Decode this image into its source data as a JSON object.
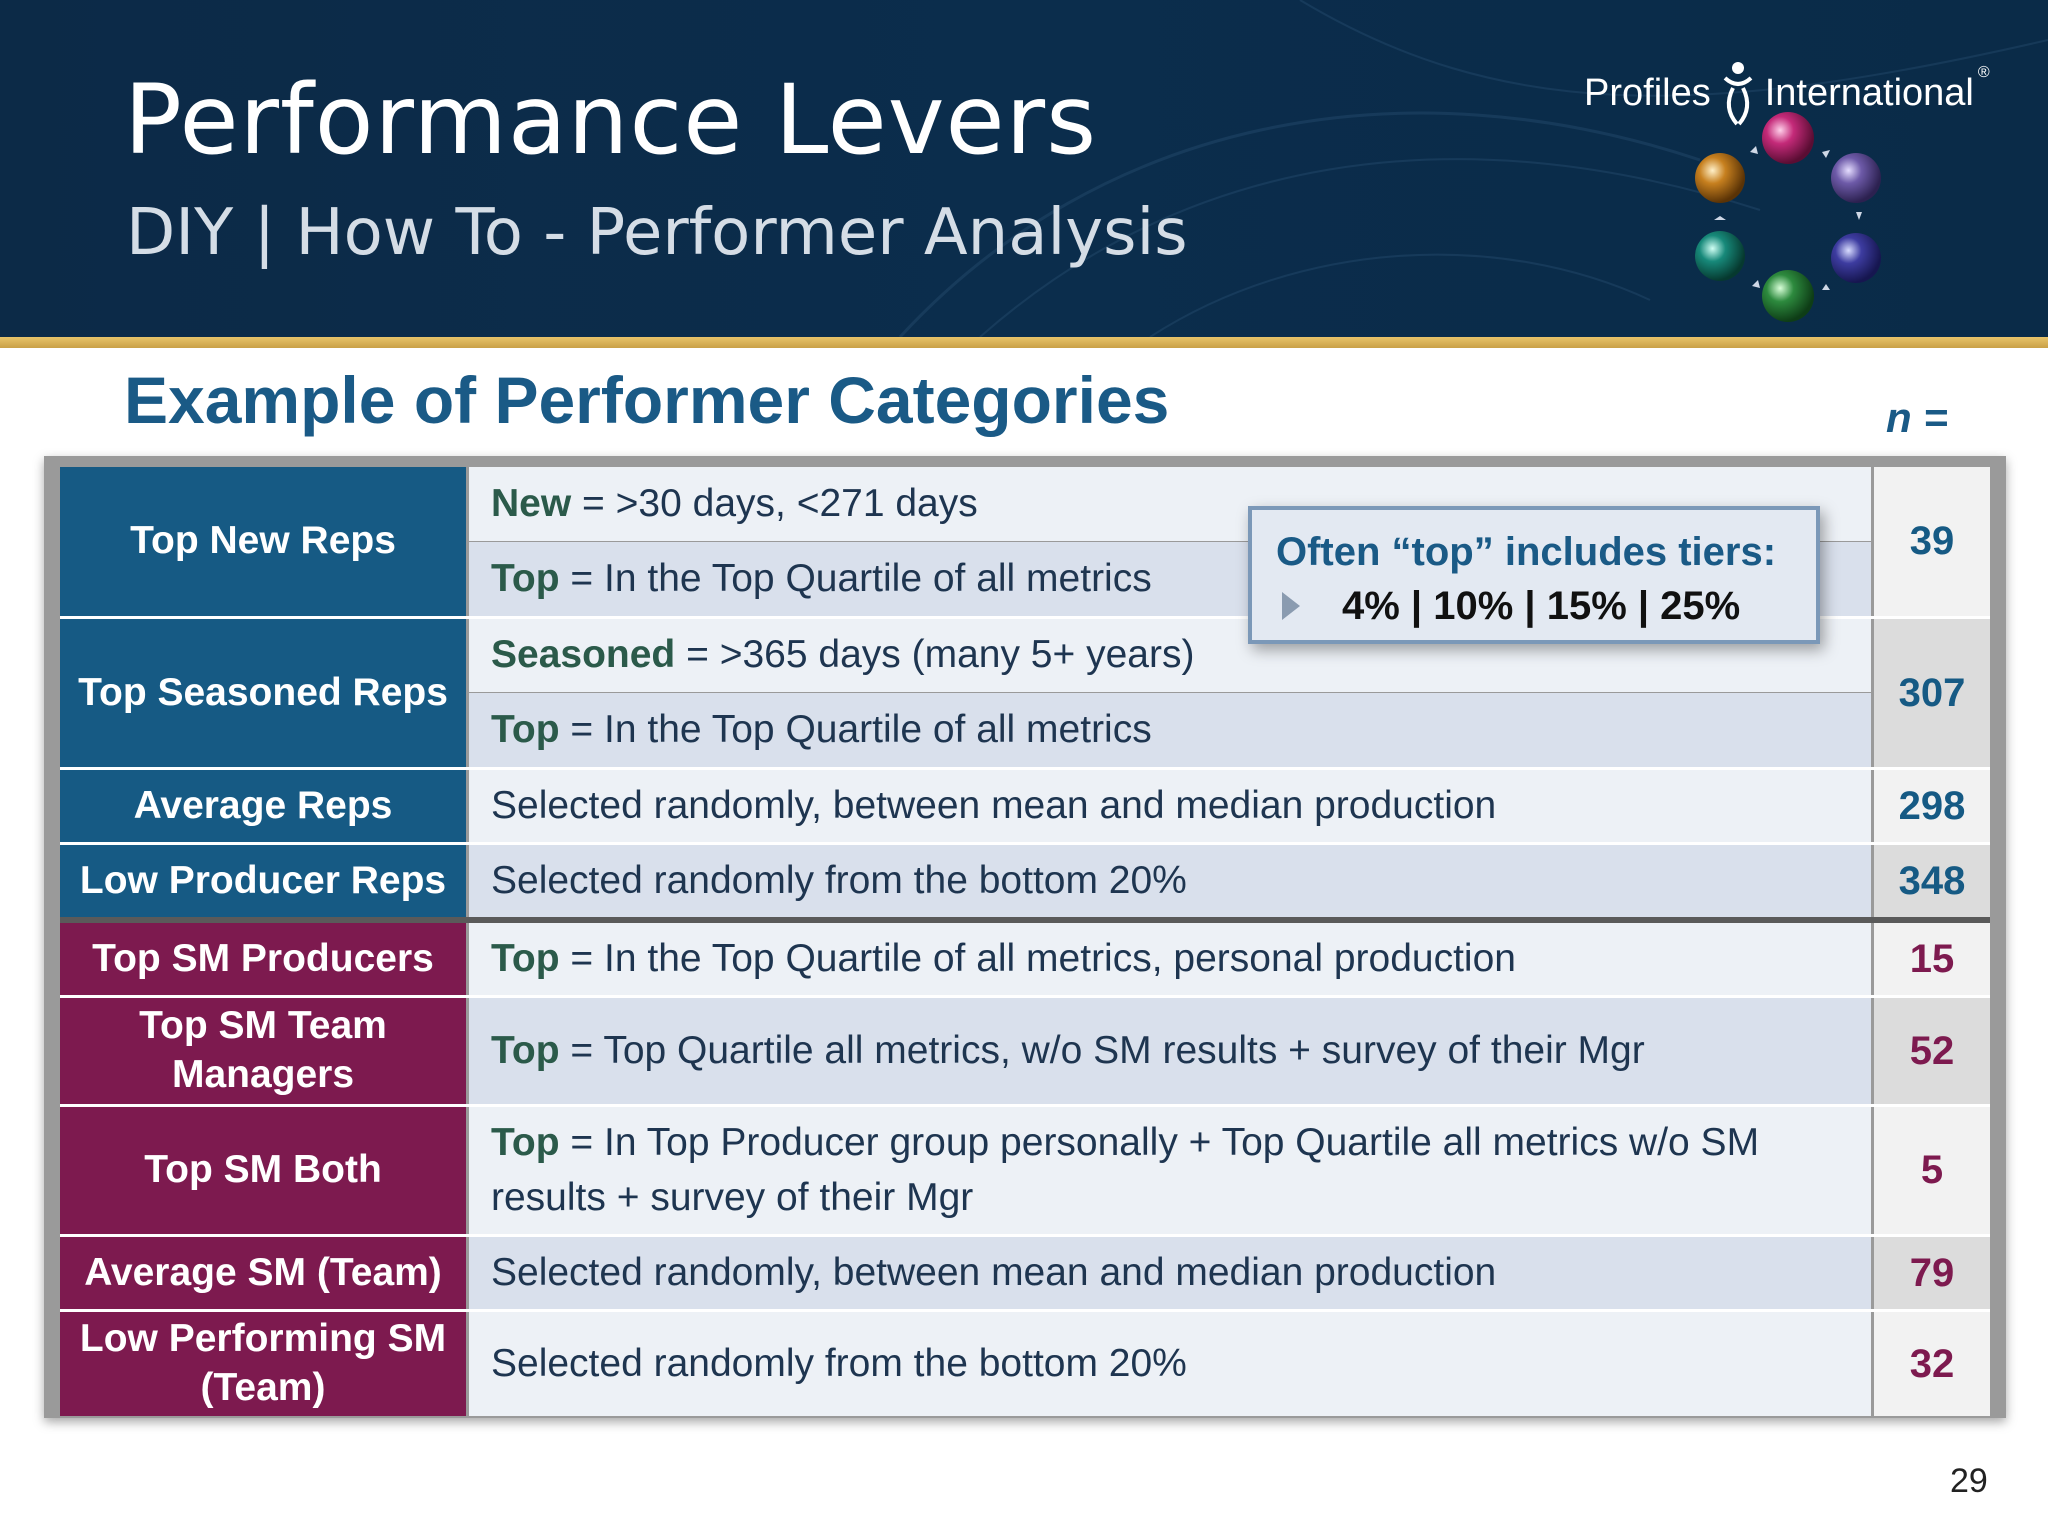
{
  "header": {
    "title": "Performance Levers",
    "subtitle": "DIY | How To - Performer Analysis",
    "logo_left": "Profiles",
    "logo_right": "International",
    "logo_mark": "®"
  },
  "section_title": "Example of Performer Categories",
  "n_label": "n =",
  "callout": {
    "title": "Often “top” includes tiers:",
    "tiers": "4% | 10% | 15% | 25%"
  },
  "rows": [
    {
      "label": "Top New Reps",
      "lines": [
        {
          "key": "New",
          "text": " = >30 days, <271 days"
        },
        {
          "key": "Top",
          "text": " = In the Top Quartile of all metrics"
        }
      ],
      "n": "39"
    },
    {
      "label": "Top Seasoned Reps",
      "lines": [
        {
          "key": "Seasoned",
          "text": " =  >365 days (many 5+ years)"
        },
        {
          "key": "Top",
          "text": " = In the Top Quartile of all metrics"
        }
      ],
      "n": "307"
    },
    {
      "label": "Average Reps",
      "text": "Selected randomly, between mean and median production",
      "n": "298"
    },
    {
      "label": "Low Producer Reps",
      "text": "Selected randomly from the bottom 20%",
      "n": "348"
    },
    {
      "label": "Top SM Producers",
      "key": "Top",
      "text": " = In the Top Quartile of all metrics, personal production",
      "n": "15"
    },
    {
      "label": "Top SM Team Managers",
      "key": "Top",
      "text": " = Top Quartile all metrics, w/o SM results + survey of their Mgr",
      "n": "52"
    },
    {
      "label": "Top SM Both",
      "key": "Top",
      "text": " = In Top Producer group personally + Top Quartile all metrics w/o SM results + survey of their Mgr",
      "n": "5"
    },
    {
      "label": "Average SM (Team)",
      "text": "Selected randomly, between mean and median production",
      "n": "79"
    },
    {
      "label": "Low Performing SM (Team)",
      "text": "Selected randomly from the bottom 20%",
      "n": "32"
    }
  ],
  "page_number": "29",
  "colors": {
    "header_bg": "#0b2d4c",
    "gold": "#d4ad55",
    "blue": "#165a84",
    "maroon": "#7d1a4f"
  }
}
